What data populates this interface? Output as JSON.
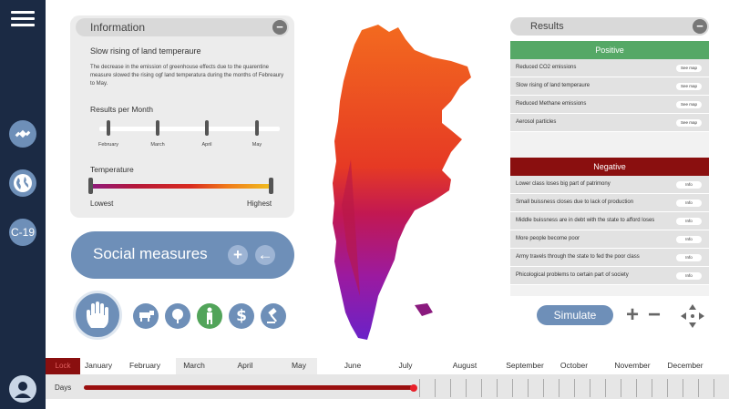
{
  "sidebar": {
    "c19_label": "C-19"
  },
  "info": {
    "title": "Information",
    "heading": "Slow rising of land temperaure",
    "description": "The decrease in the emission of greenhouse effects due to the quarentine measure slowed the rising ogf land temperatura during the months of Febreaury to May.",
    "results_per_month_label": "Results per Month",
    "months": [
      "February",
      "March",
      "April",
      "May"
    ],
    "temperature_label": "Temperature",
    "lowest_label": "Lowest",
    "highest_label": "Highest"
  },
  "social": {
    "label": "Social measures",
    "plus": "+",
    "arrow": "←",
    "dollar": "$"
  },
  "results": {
    "title": "Results",
    "positive_label": "Positive",
    "positive_items": [
      {
        "label": "Reduced CO2 emissions",
        "action": "See map"
      },
      {
        "label": "Slow rising of land temperaure",
        "action": "See map"
      },
      {
        "label": "Reduced Methane emissions",
        "action": "See map"
      },
      {
        "label": "Aerosol particles",
        "action": "See map"
      }
    ],
    "negative_label": "Negative",
    "negative_items": [
      {
        "label": "Lower class loses big part of patrimony",
        "action": "Info"
      },
      {
        "label": "Small buissness closes due to lack of production",
        "action": "Info"
      },
      {
        "label": "Middle buissness are in debt with the state to afford loses",
        "action": "Info"
      },
      {
        "label": "More people become poor",
        "action": "Info"
      },
      {
        "label": "Army travels through the state to fed the poor class",
        "action": "Info"
      },
      {
        "label": "Phicological problems to certain part of society",
        "action": "Info"
      }
    ],
    "simulate_label": "Simulate"
  },
  "timeline": {
    "lock_label": "Lock",
    "months": [
      "January",
      "February",
      "March",
      "April",
      "May",
      "June",
      "July",
      "August",
      "September",
      "October",
      "November",
      "December"
    ],
    "days_label": "Days",
    "progress": 0.5
  },
  "colors": {
    "sidebar": "#1b2a44",
    "accent": "#6e8fb8",
    "positive": "#55a866",
    "negative": "#8a0f0f",
    "timeline_progress": "#9a0f0f"
  }
}
